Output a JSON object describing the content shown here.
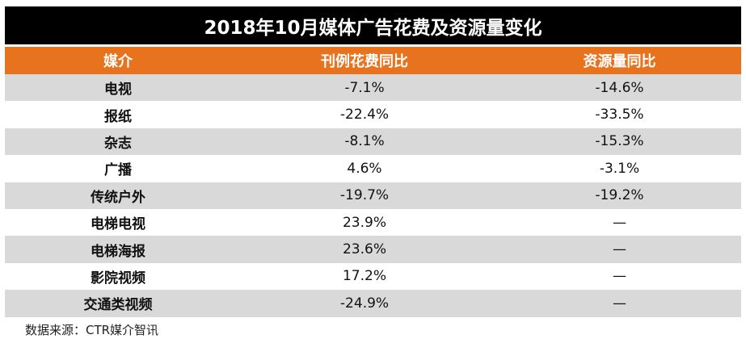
{
  "title": "2018年10月媒体广告花费及资源量变化",
  "table": {
    "header": [
      "媒介",
      "刊例花费同比",
      "资源量同比"
    ],
    "rows": [
      [
        "电视",
        "-7.1%",
        "-14.6%"
      ],
      [
        "报纸",
        "-22.4%",
        "-33.5%"
      ],
      [
        "杂志",
        "-8.1%",
        "-15.3%"
      ],
      [
        "广播",
        "4.6%",
        "-3.1%"
      ],
      [
        "传统户外",
        "-19.7%",
        "-19.2%"
      ],
      [
        "电梯电视",
        "23.9%",
        "—"
      ],
      [
        "电梯海报",
        "23.6%",
        "—"
      ],
      [
        "影院视频",
        "17.2%",
        "—"
      ],
      [
        "交通类视频",
        "-24.9%",
        "—"
      ]
    ]
  },
  "source": "数据来源：CTR媒介智讯"
}
